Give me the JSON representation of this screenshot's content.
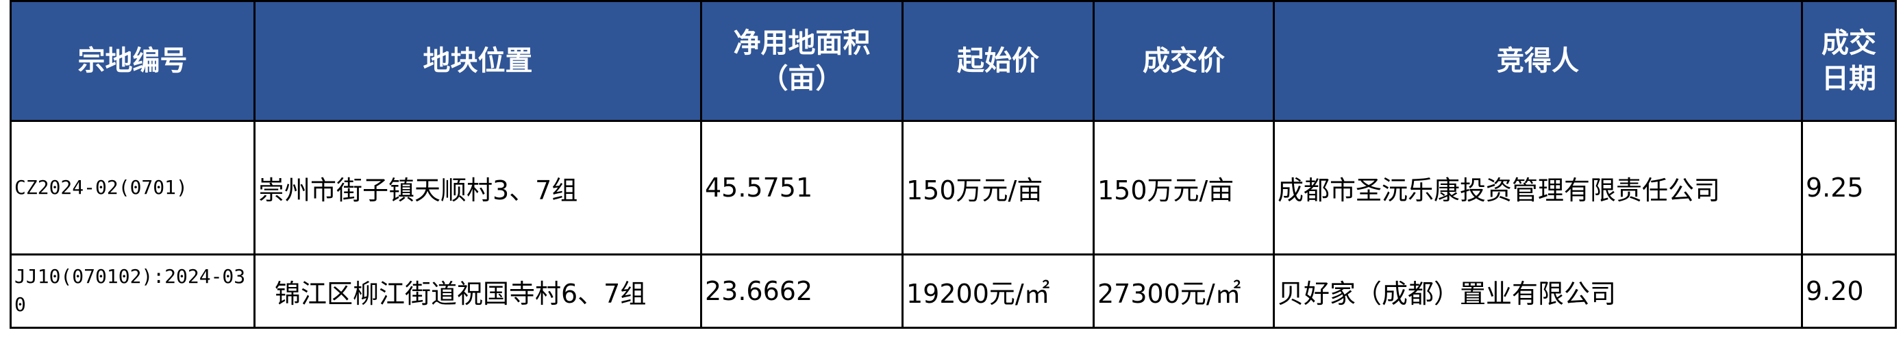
{
  "header": {
    "columns": [
      "宗地编号",
      "地块位置",
      "净用地面积（亩）",
      "起始价",
      "成交价",
      "竞得人",
      "成交日期"
    ],
    "area_line1": "净用地面积",
    "area_line2": "（亩）",
    "date_line1": "成交",
    "date_line2": "日期",
    "bg_color": "#2F5597"
  },
  "rows": [
    {
      "code": "CZ2024-02(0701)",
      "location": "崇州市街子镇天顺村3、7组",
      "area": "45.5751",
      "start_price": "150万元/亩",
      "deal_price": "150万元/亩",
      "winner": "成都市圣沅乐康投资管理有限责任公司",
      "date": "9.25"
    },
    {
      "code": "JJ10(070102):2024-030",
      "location": "锦江区柳江街道祝国寺村6、7组",
      "area": "23.6662",
      "start_price": "19200元/㎡",
      "deal_price": "27300元/㎡",
      "winner": "贝好家（成都）置业有限公司",
      "date": "9.20"
    }
  ]
}
